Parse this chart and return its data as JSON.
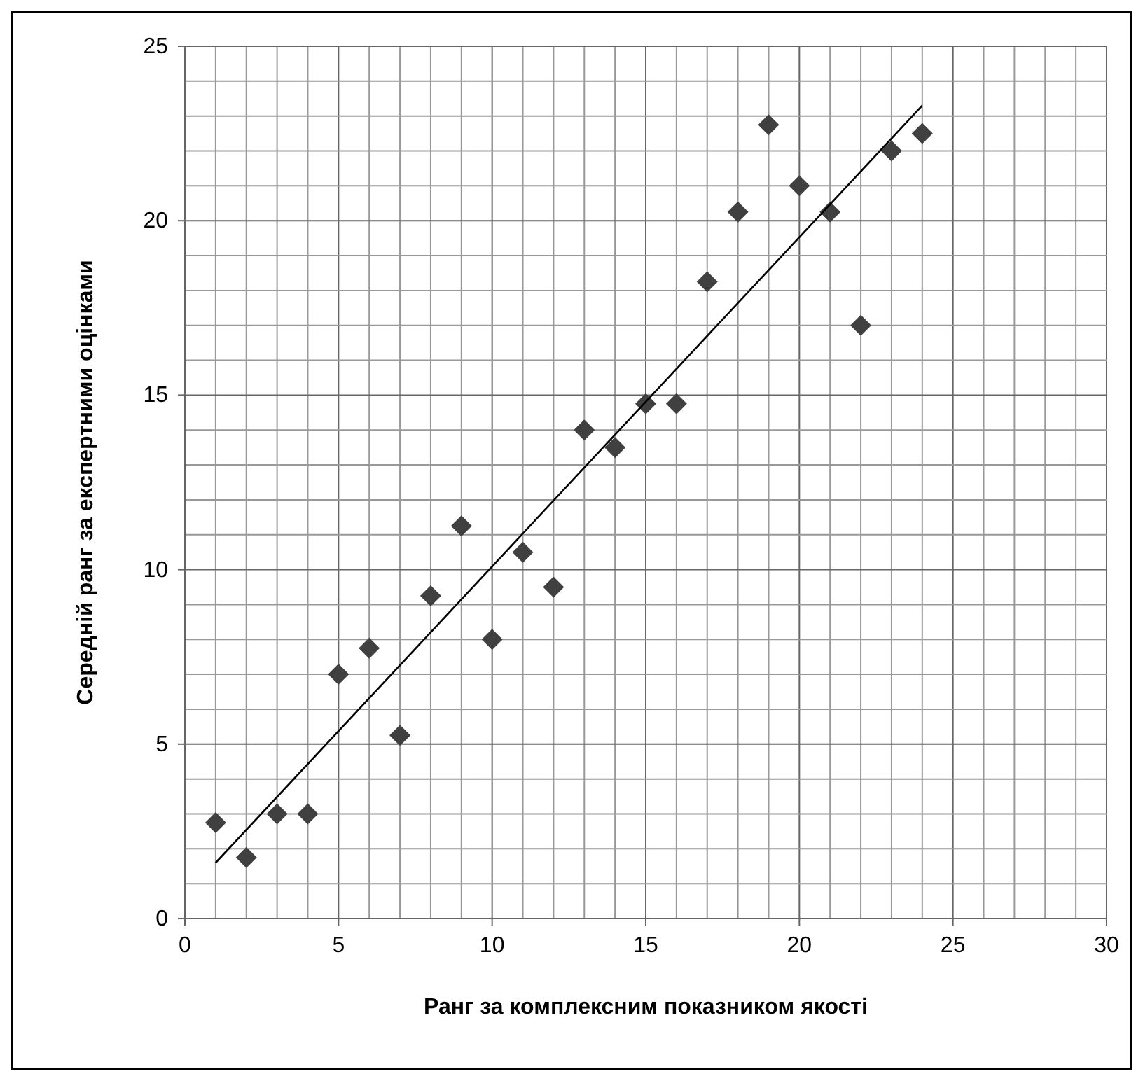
{
  "chart_data": {
    "type": "scatter",
    "xlabel": "Ранг за комплексним показником якості",
    "ylabel": "Середній ранг за експертними оцінками",
    "x": [
      1,
      2,
      3,
      4,
      5,
      6,
      7,
      8,
      9,
      10,
      11,
      12,
      13,
      14,
      15,
      16,
      17,
      18,
      19,
      20,
      21,
      22,
      23,
      24
    ],
    "series": [
      {
        "color": "#404040",
        "marker": "diamond",
        "values": [
          2.75,
          1.75,
          3,
          3,
          7,
          7.75,
          5.25,
          9.25,
          11.25,
          8,
          10.5,
          9.5,
          14,
          13.5,
          14.75,
          14.75,
          18.25,
          20.25,
          22.75,
          21,
          20.25,
          17,
          22,
          22.5
        ]
      },
      {
        "type": "line",
        "color": "#000000",
        "x": [
          1,
          24
        ],
        "values": [
          1.6,
          23.3
        ]
      }
    ],
    "xlim": [
      0,
      30
    ],
    "ylim": [
      0,
      25
    ],
    "xticks": [
      0,
      {
        "value": 1,
        "label": null
      },
      {
        "value": 2,
        "label": null
      },
      {
        "value": 3,
        "label": null
      },
      {
        "value": 4,
        "label": null
      },
      5,
      {
        "value": 6,
        "label": null
      },
      {
        "value": 7,
        "label": null
      },
      {
        "value": 8,
        "label": null
      },
      {
        "value": 9,
        "label": null
      },
      10,
      {
        "value": 11,
        "label": null
      },
      {
        "value": 12,
        "label": null
      },
      {
        "value": 13,
        "label": null
      },
      {
        "value": 14,
        "label": null
      },
      15,
      {
        "value": 16,
        "label": null
      },
      {
        "value": 17,
        "label": null
      },
      {
        "value": 18,
        "label": null
      },
      {
        "value": 19,
        "label": null
      },
      20,
      {
        "value": 21,
        "label": null
      },
      {
        "value": 22,
        "label": null
      },
      {
        "value": 23,
        "label": null
      },
      {
        "value": 24,
        "label": null
      },
      25,
      {
        "value": 26,
        "label": null
      },
      {
        "value": 27,
        "label": null
      },
      {
        "value": 28,
        "label": null
      },
      {
        "value": 29,
        "label": null
      },
      30
    ],
    "yticks": [
      0,
      {
        "value": 1,
        "label": null
      },
      {
        "value": 2,
        "label": null
      },
      {
        "value": 3,
        "label": null
      },
      {
        "value": 4,
        "label": null
      },
      5,
      {
        "value": 6,
        "label": null
      },
      {
        "value": 7,
        "label": null
      },
      {
        "value": 8,
        "label": null
      },
      {
        "value": 9,
        "label": null
      },
      10,
      {
        "value": 11,
        "label": null
      },
      {
        "value": 12,
        "label": null
      },
      {
        "value": 13,
        "label": null
      },
      {
        "value": 14,
        "label": null
      },
      15,
      {
        "value": 16,
        "label": null
      },
      {
        "value": 17,
        "label": null
      },
      {
        "value": 18,
        "label": null
      },
      {
        "value": 19,
        "label": null
      },
      20,
      {
        "value": 21,
        "label": null
      },
      {
        "value": 22,
        "label": null
      },
      {
        "value": 23,
        "label": null
      },
      {
        "value": 24,
        "label": null
      },
      25
    ],
    "grid": true
  }
}
